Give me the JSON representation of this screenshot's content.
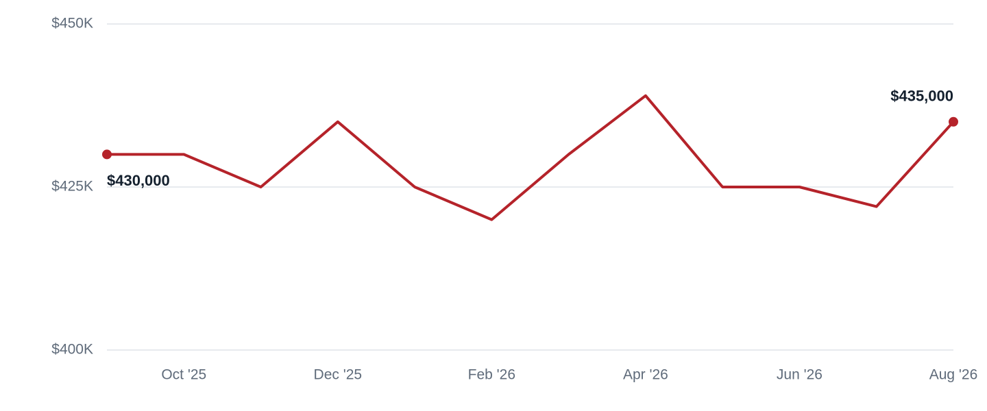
{
  "chart_data": {
    "type": "line",
    "categories": [
      null,
      "Oct '25",
      null,
      "Dec '25",
      null,
      "Feb '26",
      null,
      "Apr '26",
      null,
      "Jun '26",
      null,
      "Aug '26"
    ],
    "values": [
      430000,
      430000,
      425000,
      435000,
      425000,
      420000,
      430000,
      439000,
      425000,
      425000,
      422000,
      435000
    ],
    "value_labels": [
      "$430,000",
      null,
      null,
      null,
      null,
      null,
      null,
      null,
      null,
      null,
      null,
      "$435,000"
    ],
    "color": "#b5232a",
    "ylim": [
      400000,
      450000
    ],
    "yticks": [
      {
        "value": 400000,
        "label": "$400K"
      },
      {
        "value": 425000,
        "label": "$425K"
      },
      {
        "value": 450000,
        "label": "$450K"
      }
    ],
    "grid": true
  }
}
